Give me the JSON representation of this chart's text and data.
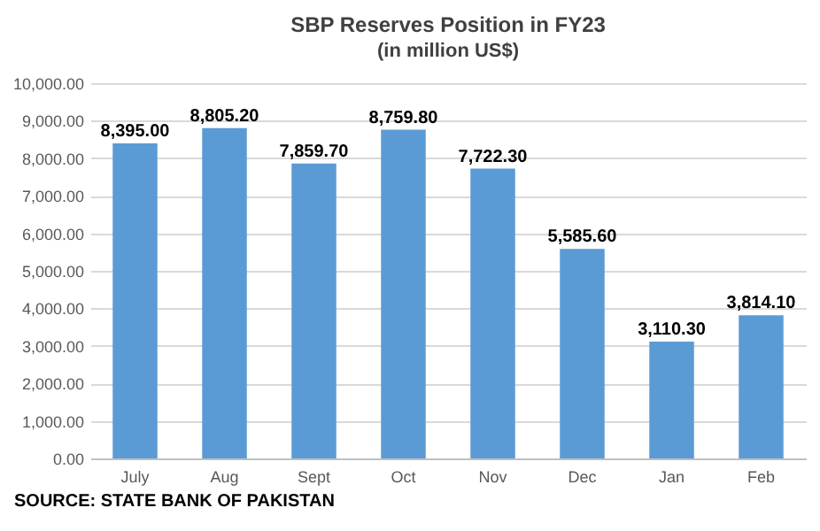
{
  "chart_data": {
    "type": "bar",
    "title": "SBP Reserves Position in FY23",
    "subtitle": "(in million US$)",
    "categories": [
      "July",
      "Aug",
      "Sept",
      "Oct",
      "Nov",
      "Dec",
      "Jan",
      "Feb"
    ],
    "values": [
      8395.0,
      8805.2,
      7859.7,
      8759.8,
      7722.3,
      5585.6,
      3110.3,
      3814.1
    ],
    "value_labels": [
      "8,395.00",
      "8,805.20",
      "7,859.70",
      "8,759.80",
      "7,722.30",
      "5,585.60",
      "3,110.30",
      "3,814.10"
    ],
    "color": "#5b9bd5",
    "ylim": [
      0,
      10000
    ],
    "yticks": [
      {
        "value": 0,
        "label": "0.00"
      },
      {
        "value": 1000,
        "label": "1,000.00"
      },
      {
        "value": 2000,
        "label": "2,000.00"
      },
      {
        "value": 3000,
        "label": "3,000.00"
      },
      {
        "value": 4000,
        "label": "4,000.00"
      },
      {
        "value": 5000,
        "label": "5,000.00"
      },
      {
        "value": 6000,
        "label": "6,000.00"
      },
      {
        "value": 7000,
        "label": "7,000.00"
      },
      {
        "value": 8000,
        "label": "8,000.00"
      },
      {
        "value": 9000,
        "label": "9,000.00"
      },
      {
        "value": 10000,
        "label": "10,000.00"
      }
    ],
    "grid": true,
    "annotations": [
      "SOURCE: STATE BANK OF PAKISTAN"
    ]
  }
}
